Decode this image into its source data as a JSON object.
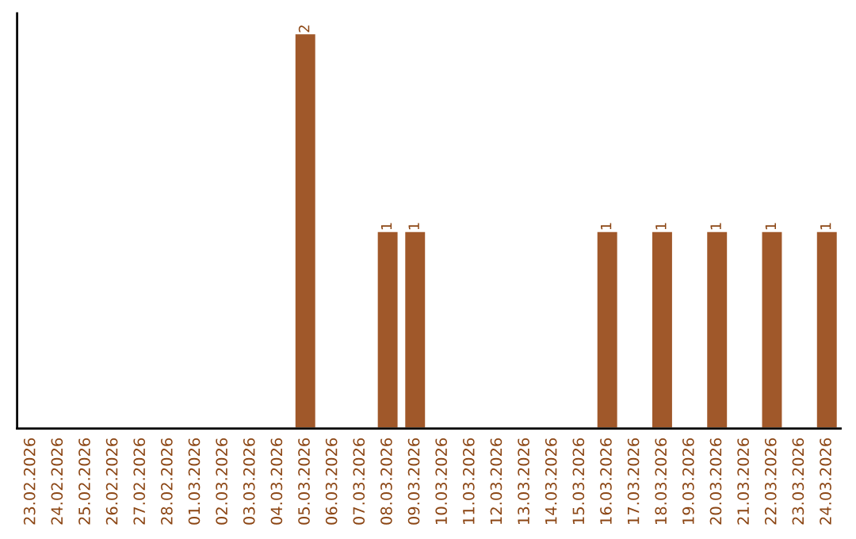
{
  "chart_data": {
    "type": "bar",
    "categories": [
      "23.02.2026",
      "24.02.2026",
      "25.02.2026",
      "26.02.2026",
      "27.02.2026",
      "28.02.2026",
      "01.03.2026",
      "02.03.2026",
      "03.03.2026",
      "04.03.2026",
      "05.03.2026",
      "06.03.2026",
      "07.03.2026",
      "08.03.2026",
      "09.03.2026",
      "10.03.2026",
      "11.03.2026",
      "12.03.2026",
      "13.03.2026",
      "14.03.2026",
      "15.03.2026",
      "16.03.2026",
      "17.03.2026",
      "18.03.2026",
      "19.03.2026",
      "20.03.2026",
      "21.03.2026",
      "22.03.2026",
      "23.03.2026",
      "24.03.2026"
    ],
    "values": [
      0,
      0,
      0,
      0,
      0,
      0,
      0,
      0,
      0,
      0,
      2,
      0,
      0,
      1,
      1,
      0,
      0,
      0,
      0,
      0,
      0,
      1,
      0,
      1,
      0,
      1,
      0,
      1,
      0,
      1
    ],
    "color": "#a0582a",
    "value_labels": [
      null,
      null,
      null,
      null,
      null,
      null,
      null,
      null,
      null,
      null,
      "2",
      null,
      null,
      "1",
      "1",
      null,
      null,
      null,
      null,
      null,
      null,
      "1",
      null,
      "1",
      null,
      "1",
      null,
      "1",
      null,
      "1"
    ],
    "ylim": [
      0,
      2.1
    ],
    "tick_labels": "x",
    "grid": false,
    "legend": false
  }
}
